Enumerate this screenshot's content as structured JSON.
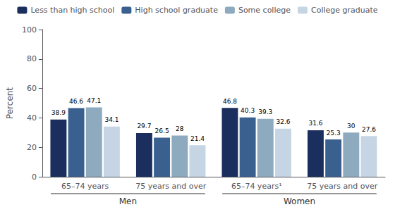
{
  "chart_data": {
    "type": "bar",
    "categories": [
      "65–74 years",
      "75 years and over",
      "65–74 years¹",
      "75 years and over"
    ],
    "series": [
      {
        "name": "Less than high school",
        "color": "#1a2f5e",
        "values": [
          38.9,
          29.7,
          46.8,
          31.6
        ]
      },
      {
        "name": "High school graduate",
        "color": "#3a6090",
        "values": [
          46.6,
          26.5,
          40.3,
          25.3
        ]
      },
      {
        "name": "Some college",
        "color": "#8daabe",
        "values": [
          47.1,
          28.0,
          39.3,
          30.0
        ]
      },
      {
        "name": "College graduate",
        "color": "#c5d5e4",
        "values": [
          34.1,
          21.4,
          32.6,
          27.6
        ]
      }
    ],
    "ylabel": "Percent",
    "ylim": [
      0,
      100
    ],
    "yticks": [
      0,
      20,
      40,
      60,
      80,
      100
    ],
    "annotations": [
      {
        "text": "Men",
        "from": 0,
        "to": 1
      },
      {
        "text": "Women",
        "from": 2,
        "to": 3
      }
    ],
    "data_labels": true,
    "grid": false,
    "legend": "top"
  }
}
